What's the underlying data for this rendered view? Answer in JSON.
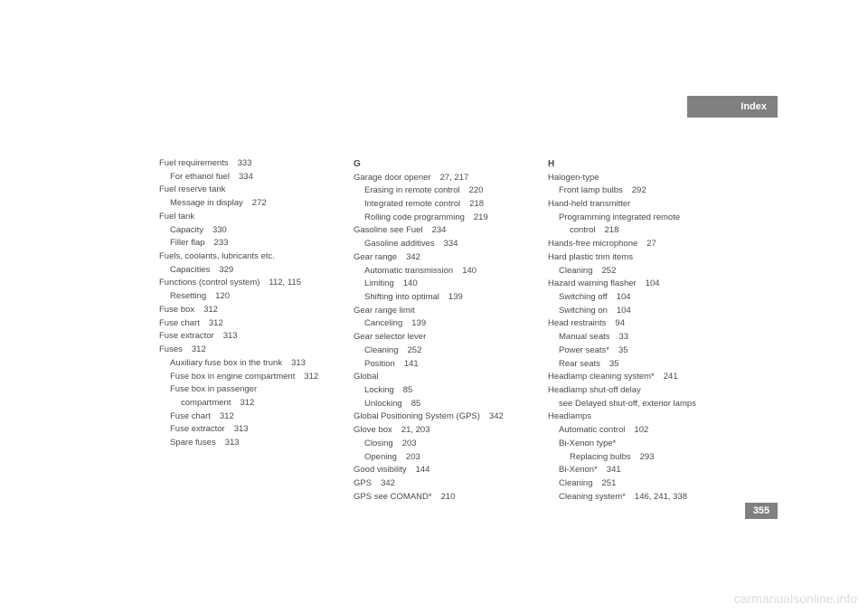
{
  "header": {
    "title": "Index"
  },
  "page_number": "355",
  "watermark": "carmanualsonline.info",
  "columns": [
    {
      "entries": [
        {
          "text": "Fuel requirements",
          "page": "333",
          "indent": 0
        },
        {
          "text": "For ethanol fuel",
          "page": "334",
          "indent": 1
        },
        {
          "text": "Fuel reserve tank",
          "page": "",
          "indent": 0
        },
        {
          "text": "Message in display",
          "page": "272",
          "indent": 1
        },
        {
          "text": "Fuel tank",
          "page": "",
          "indent": 0
        },
        {
          "text": "Capacity",
          "page": "330",
          "indent": 1
        },
        {
          "text": "Filler flap",
          "page": "233",
          "indent": 1
        },
        {
          "text": "Fuels, coolants, lubricants etc.",
          "page": "",
          "indent": 0
        },
        {
          "text": "Capacities",
          "page": "329",
          "indent": 1
        },
        {
          "text": "Functions (control system)",
          "page": "112, 115",
          "indent": 0
        },
        {
          "text": "Resetting",
          "page": "120",
          "indent": 1
        },
        {
          "text": "Fuse box",
          "page": "312",
          "indent": 0
        },
        {
          "text": "Fuse chart",
          "page": "312",
          "indent": 0
        },
        {
          "text": "Fuse extractor",
          "page": "313",
          "indent": 0
        },
        {
          "text": "Fuses",
          "page": "312",
          "indent": 0
        },
        {
          "text": "Auxiliary fuse box in the trunk",
          "page": "313",
          "indent": 1
        },
        {
          "text": "Fuse box in engine compartment",
          "page": "312",
          "indent": 1
        },
        {
          "text": "Fuse box in passenger",
          "page": "",
          "indent": 1
        },
        {
          "text": "compartment",
          "page": "312",
          "indent": 2
        },
        {
          "text": "Fuse chart",
          "page": "312",
          "indent": 1
        },
        {
          "text": "Fuse extractor",
          "page": "313",
          "indent": 1
        },
        {
          "text": "Spare fuses",
          "page": "313",
          "indent": 1
        }
      ]
    },
    {
      "entries": [
        {
          "text": "G",
          "page": "",
          "indent": 0,
          "header": true
        },
        {
          "text": "Garage door opener",
          "page": "27, 217",
          "indent": 0
        },
        {
          "text": "Erasing in remote control",
          "page": "220",
          "indent": 1
        },
        {
          "text": "Integrated remote control",
          "page": "218",
          "indent": 1
        },
        {
          "text": "Rolling code programming",
          "page": "219",
          "indent": 1
        },
        {
          "text": "Gasoline see Fuel",
          "page": "234",
          "indent": 0
        },
        {
          "text": "Gasoline additives",
          "page": "334",
          "indent": 1
        },
        {
          "text": "Gear range",
          "page": "342",
          "indent": 0
        },
        {
          "text": "Automatic transmission",
          "page": "140",
          "indent": 1
        },
        {
          "text": "Limiting",
          "page": "140",
          "indent": 1
        },
        {
          "text": "Shifting into optimal",
          "page": "139",
          "indent": 1
        },
        {
          "text": "Gear range limit",
          "page": "",
          "indent": 0
        },
        {
          "text": "Canceling",
          "page": "139",
          "indent": 1
        },
        {
          "text": "Gear selector lever",
          "page": "",
          "indent": 0
        },
        {
          "text": "Cleaning",
          "page": "252",
          "indent": 1
        },
        {
          "text": "Position",
          "page": "141",
          "indent": 1
        },
        {
          "text": "Global",
          "page": "",
          "indent": 0
        },
        {
          "text": "Locking",
          "page": "85",
          "indent": 1
        },
        {
          "text": "Unlocking",
          "page": "85",
          "indent": 1
        },
        {
          "text": "Global Positioning System (GPS)",
          "page": "342",
          "indent": 0
        },
        {
          "text": "Glove box",
          "page": "21, 203",
          "indent": 0
        },
        {
          "text": "Closing",
          "page": "203",
          "indent": 1
        },
        {
          "text": "Opening",
          "page": "203",
          "indent": 1
        },
        {
          "text": "Good visibility",
          "page": "144",
          "indent": 0
        },
        {
          "text": "GPS",
          "page": "342",
          "indent": 0
        },
        {
          "text": "GPS see COMAND*",
          "page": "210",
          "indent": 0
        }
      ]
    },
    {
      "entries": [
        {
          "text": "H",
          "page": "",
          "indent": 0,
          "header": true
        },
        {
          "text": "Halogen-type",
          "page": "",
          "indent": 0
        },
        {
          "text": "Front lamp bulbs",
          "page": "292",
          "indent": 1
        },
        {
          "text": "Hand-held transmitter",
          "page": "",
          "indent": 0
        },
        {
          "text": "Programming integrated remote",
          "page": "",
          "indent": 1
        },
        {
          "text": "control",
          "page": "218",
          "indent": 2
        },
        {
          "text": "Hands-free microphone",
          "page": "27",
          "indent": 0
        },
        {
          "text": "Hard plastic trim items",
          "page": "",
          "indent": 0
        },
        {
          "text": "Cleaning",
          "page": "252",
          "indent": 1
        },
        {
          "text": "Hazard warning flasher",
          "page": "104",
          "indent": 0
        },
        {
          "text": "Switching off",
          "page": "104",
          "indent": 1
        },
        {
          "text": "Switching on",
          "page": "104",
          "indent": 1
        },
        {
          "text": "Head restraints",
          "page": "94",
          "indent": 0
        },
        {
          "text": "Manual seats",
          "page": "33",
          "indent": 1
        },
        {
          "text": "Power seats*",
          "page": "35",
          "indent": 1
        },
        {
          "text": "Rear seats",
          "page": "35",
          "indent": 1
        },
        {
          "text": "Headlamp cleaning system*",
          "page": "241",
          "indent": 0
        },
        {
          "text": "Headlamp shut-off delay",
          "page": "",
          "indent": 0
        },
        {
          "text": "see Delayed shut-off, exterior lamps",
          "page": "",
          "indent": 1
        },
        {
          "text": "Headlamps",
          "page": "",
          "indent": 0
        },
        {
          "text": "Automatic control",
          "page": "102",
          "indent": 1
        },
        {
          "text": "Bi-Xenon type*",
          "page": "",
          "indent": 1
        },
        {
          "text": "Replacing bulbs",
          "page": "293",
          "indent": 2
        },
        {
          "text": "Bi-Xenon*",
          "page": "341",
          "indent": 1
        },
        {
          "text": "Cleaning",
          "page": "251",
          "indent": 1
        },
        {
          "text": "Cleaning system*",
          "page": "146, 241, 338",
          "indent": 1
        }
      ]
    }
  ]
}
